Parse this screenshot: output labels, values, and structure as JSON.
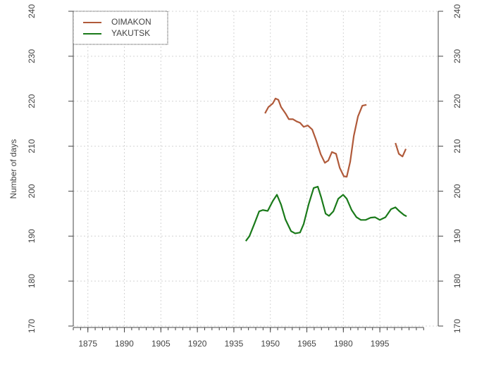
{
  "chart_data": {
    "type": "line",
    "ylabel": "Number of days",
    "xlim": [
      1869,
      2019
    ],
    "ylim": [
      170,
      240
    ],
    "xticks": [
      1875,
      1890,
      1905,
      1920,
      1935,
      1950,
      1965,
      1980,
      1995
    ],
    "xminorticks": [
      1869,
      1872,
      1875,
      1878,
      1881,
      1884,
      1887,
      1890,
      1893,
      1896,
      1899,
      1902,
      1905,
      1908,
      1911,
      1914,
      1917,
      1920,
      1923,
      1926,
      1929,
      1932,
      1935,
      1938,
      1941,
      1944,
      1947,
      1950,
      1953,
      1956,
      1959,
      1962,
      1965,
      1968,
      1971,
      1974,
      1977,
      1980,
      1983,
      1986,
      1989,
      1992,
      1995,
      1998,
      2001,
      2004,
      2007,
      2010,
      2013
    ],
    "yticks": [
      170,
      180,
      190,
      200,
      210,
      220,
      230,
      240
    ],
    "y2lim": [
      170,
      240
    ],
    "y2ticks": [
      170,
      180,
      190,
      200,
      210,
      220,
      230,
      240
    ],
    "grid": true,
    "legend": "top-left",
    "series": [
      {
        "name": "OIMAKON",
        "color": "#b05a3a",
        "x": [
          1947.8,
          1949.2,
          1951.0,
          1952.1,
          1953.3,
          1954.4,
          1956.2,
          1957.6,
          1959.3,
          1960.8,
          1962.2,
          1963.7,
          1965.4,
          1967.2,
          1968.9,
          1970.7,
          1972.4,
          1973.8,
          1975.3,
          1977.0,
          1978.5,
          1980.2,
          1981.4,
          1982.8,
          1984.3,
          1986.0,
          1987.8,
          1989.5,
          1995.0,
          2001.4,
          2002.8,
          2004.3,
          2005.7
        ],
        "values": [
          217.3,
          218.7,
          219.5,
          220.6,
          220.3,
          218.7,
          217.3,
          216.0,
          216.0,
          215.5,
          215.2,
          214.3,
          214.6,
          213.7,
          211.2,
          208.2,
          206.3,
          206.8,
          208.7,
          208.3,
          205.2,
          203.3,
          203.2,
          206.5,
          212.3,
          216.6,
          219.0,
          219.2,
          null,
          210.7,
          208.3,
          207.7,
          209.4
        ]
      },
      {
        "name": "YAKUTSK",
        "color": "#1a7a1a",
        "x": [
          1939.9,
          1941.4,
          1943.4,
          1945.4,
          1946.9,
          1948.9,
          1951.0,
          1952.7,
          1954.4,
          1956.2,
          1958.5,
          1960.2,
          1962.2,
          1963.7,
          1965.7,
          1967.8,
          1969.5,
          1970.9,
          1972.7,
          1974.1,
          1975.9,
          1977.9,
          1979.9,
          1981.4,
          1983.4,
          1985.4,
          1987.2,
          1989.2,
          1991.2,
          1993.0,
          1995.0,
          1997.3,
          1999.6,
          2001.4,
          2003.1,
          2004.9,
          2006.0
        ],
        "values": [
          188.9,
          190.0,
          192.7,
          195.5,
          195.8,
          195.6,
          197.8,
          199.2,
          197.0,
          193.7,
          191.1,
          190.6,
          190.8,
          192.7,
          197.0,
          200.7,
          201.0,
          198.6,
          195.0,
          194.5,
          195.5,
          198.3,
          199.2,
          198.3,
          195.8,
          194.2,
          193.6,
          193.6,
          194.1,
          194.2,
          193.6,
          194.2,
          196.0,
          196.4,
          195.5,
          194.7,
          194.4
        ]
      }
    ]
  }
}
